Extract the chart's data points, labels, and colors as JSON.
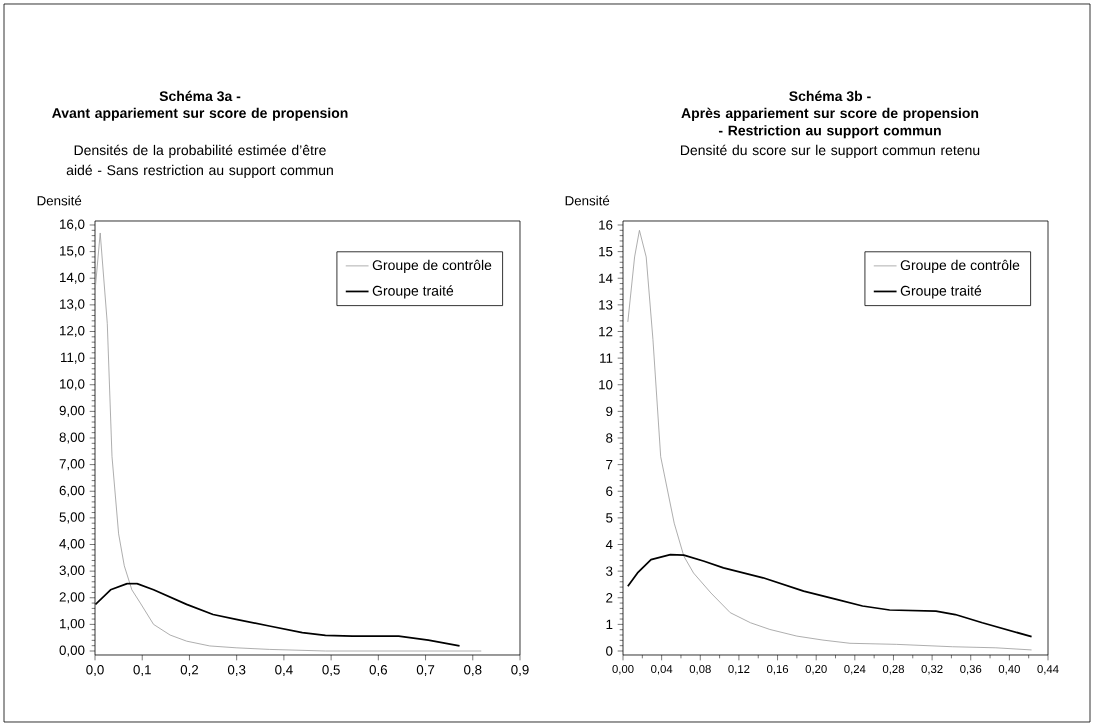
{
  "chart_data": [
    {
      "type": "line",
      "title": "Schéma 3a -",
      "subtitle": "Avant appariement sur score de propension",
      "annotations": [
        "Densités de la probabilité estimée d’être aidé - Sans restriction au support commun"
      ],
      "ylabel": "Densité",
      "series": [
        {
          "name": "Groupe de contrôle",
          "color": "#999999",
          "x": [
            0.001,
            0.011,
            0.026,
            0.036,
            0.05,
            0.062,
            0.078,
            0.096,
            0.124,
            0.159,
            0.194,
            0.243,
            0.299,
            0.369,
            0.488,
            0.818
          ],
          "values": [
            13.7,
            15.7,
            12.3,
            7.3,
            4.4,
            3.2,
            2.3,
            1.8,
            1.0,
            0.6,
            0.37,
            0.19,
            0.12,
            0.06,
            0.0,
            0.0
          ]
        },
        {
          "name": "Groupe traité",
          "color": "#000000",
          "x": [
            0.001,
            0.033,
            0.068,
            0.089,
            0.124,
            0.194,
            0.25,
            0.299,
            0.369,
            0.439,
            0.488,
            0.545,
            0.643,
            0.706,
            0.772
          ],
          "values": [
            1.75,
            2.3,
            2.53,
            2.53,
            2.3,
            1.75,
            1.37,
            1.19,
            0.94,
            0.69,
            0.59,
            0.56,
            0.56,
            0.41,
            0.19
          ]
        }
      ],
      "xlim": [
        0,
        0.9
      ],
      "ylim": [
        -0.15,
        16.15
      ],
      "xticks": [
        {
          "value": 0,
          "label": "0,0"
        },
        {
          "value": 0.1,
          "label": "0,1"
        },
        {
          "value": 0.2,
          "label": "0,2"
        },
        {
          "value": 0.3,
          "label": "0,3"
        },
        {
          "value": 0.4,
          "label": "0,4"
        },
        {
          "value": 0.5,
          "label": "0,5"
        },
        {
          "value": 0.6,
          "label": "0,6"
        },
        {
          "value": 0.7,
          "label": "0,7"
        },
        {
          "value": 0.8,
          "label": "0,8"
        },
        {
          "value": 0.9,
          "label": "0,9"
        }
      ],
      "yticks": [
        {
          "value": 0,
          "label": "0,00"
        },
        {
          "value": 1,
          "label": "1,00"
        },
        {
          "value": 2,
          "label": "2,00"
        },
        {
          "value": 3,
          "label": "3,00"
        },
        {
          "value": 4,
          "label": "4,00"
        },
        {
          "value": 5,
          "label": "5,00"
        },
        {
          "value": 6,
          "label": "6,00"
        },
        {
          "value": 7,
          "label": "7,00"
        },
        {
          "value": 8,
          "label": "8,00"
        },
        {
          "value": 9,
          "label": "9,00"
        },
        {
          "value": 10,
          "label": "10,0"
        },
        {
          "value": 11,
          "label": "11,0"
        },
        {
          "value": 12,
          "label": "12,0"
        },
        {
          "value": 13,
          "label": "13,0"
        },
        {
          "value": 14,
          "label": "14,0"
        },
        {
          "value": 15,
          "label": "15,0"
        },
        {
          "value": 16,
          "label": "16,0"
        }
      ],
      "legend": "top right",
      "grid": false,
      "marker": "none",
      "line_style": "solid"
    },
    {
      "type": "line",
      "title": "Schéma 3b -",
      "subtitle": "Après appariement sur score de propension - Restriction au support commun",
      "annotations": [
        "Densité du score sur le support commun retenu"
      ],
      "ylabel": "Densité",
      "series": [
        {
          "name": "Groupe de contrôle",
          "color": "#999999",
          "x": [
            0.005,
            0.012,
            0.017,
            0.024,
            0.031,
            0.039,
            0.053,
            0.063,
            0.073,
            0.091,
            0.111,
            0.132,
            0.152,
            0.18,
            0.207,
            0.235,
            0.283,
            0.341,
            0.386,
            0.423
          ],
          "values": [
            12.36,
            14.8,
            15.8,
            14.8,
            11.7,
            7.3,
            4.8,
            3.56,
            2.93,
            2.18,
            1.44,
            1.06,
            0.81,
            0.56,
            0.41,
            0.29,
            0.25,
            0.16,
            0.12,
            0.04
          ]
        },
        {
          "name": "Groupe traité",
          "color": "#000000",
          "x": [
            0.005,
            0.015,
            0.029,
            0.049,
            0.063,
            0.084,
            0.104,
            0.145,
            0.187,
            0.221,
            0.248,
            0.276,
            0.324,
            0.344,
            0.372,
            0.423
          ],
          "values": [
            2.43,
            2.93,
            3.43,
            3.62,
            3.6,
            3.37,
            3.12,
            2.75,
            2.25,
            1.94,
            1.69,
            1.54,
            1.5,
            1.37,
            1.06,
            0.54
          ]
        }
      ],
      "xlim": [
        0,
        0.44
      ],
      "ylim": [
        -0.15,
        16.15
      ],
      "xticks": [
        {
          "value": 0,
          "label": "0,00"
        },
        {
          "value": 0.04,
          "label": "0,04"
        },
        {
          "value": 0.08,
          "label": "0,08"
        },
        {
          "value": 0.12,
          "label": "0,12"
        },
        {
          "value": 0.16,
          "label": "0,16"
        },
        {
          "value": 0.2,
          "label": "0,20"
        },
        {
          "value": 0.24,
          "label": "0,24"
        },
        {
          "value": 0.28,
          "label": "0,28"
        },
        {
          "value": 0.32,
          "label": "0,32"
        },
        {
          "value": 0.36,
          "label": "0,36"
        },
        {
          "value": 0.4,
          "label": "0,40"
        },
        {
          "value": 0.44,
          "label": "0,44"
        }
      ],
      "yticks": [
        0,
        1,
        2,
        3,
        4,
        5,
        6,
        7,
        8,
        9,
        10,
        11,
        12,
        13,
        14,
        15,
        16
      ],
      "legend": "top right",
      "grid": false,
      "marker": "none",
      "line_style": "solid"
    }
  ]
}
